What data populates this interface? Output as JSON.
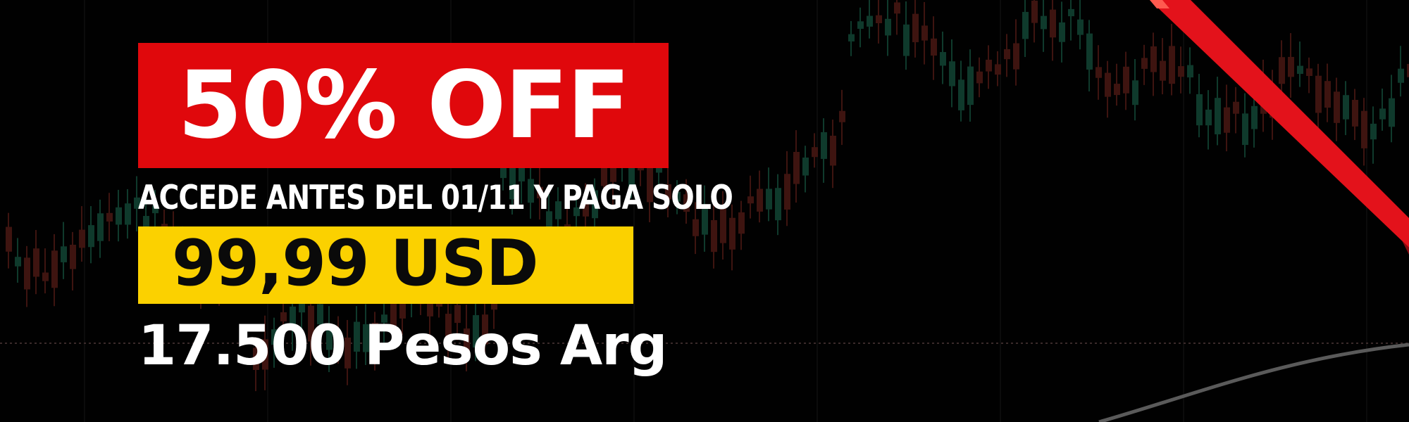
{
  "promo": {
    "discount": "50% OFF",
    "subtitle": "ACCEDE ANTES DEL 01/11 Y PAGA SOLO",
    "price": "99,99 USD",
    "local_price": "17.500 Pesos Arg"
  },
  "colors": {
    "background": "#010101",
    "discount_box": "#e0080c",
    "price_box": "#fbd100",
    "ribbon": "#e3121b",
    "candle_up": "#0f3a2c",
    "candle_down": "#3e1410"
  },
  "icons": [
    "candlestick-chart-background",
    "corner-ribbon"
  ]
}
